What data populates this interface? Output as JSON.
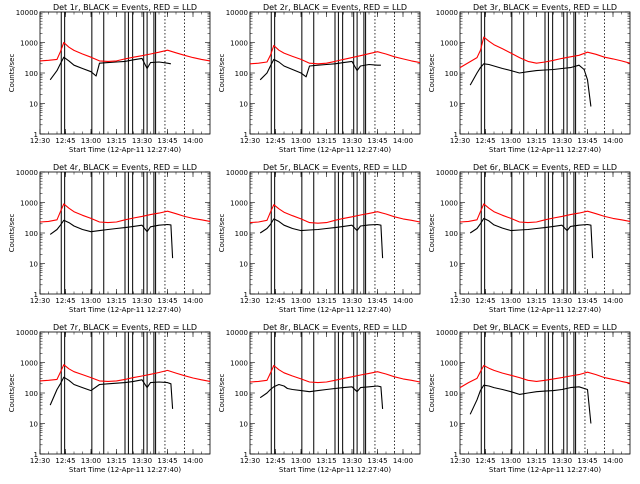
{
  "figure": {
    "xlabel": "Start Time (12-Apr-11 12:27:40)",
    "ylabel": "Counts/sec",
    "xticks": [
      "12:30",
      "12:45",
      "13:00",
      "13:15",
      "13:30",
      "13:45",
      "14:00"
    ],
    "yticks": [
      "1",
      "10",
      "100",
      "1000",
      "10000"
    ]
  },
  "colors": {
    "events": "#000000",
    "lld": "#ff0000"
  },
  "chart_data": [
    {
      "type": "line",
      "title": "Det 1r, BLACK = Events, RED = LLD",
      "yscale": "log",
      "xlim": [
        "12:30",
        "14:10"
      ],
      "ylim": [
        1,
        10000
      ],
      "series": [
        {
          "name": "BLACK = Events",
          "x": [
            "12:36",
            "12:40",
            "12:42",
            "12:44",
            "12:47",
            "12:50",
            "12:55",
            "13:00",
            "13:03",
            "13:05",
            "13:10",
            "13:15",
            "13:20",
            "13:25",
            "13:30",
            "13:33",
            "13:35",
            "13:40",
            "13:45",
            "13:47"
          ],
          "y": [
            60,
            120,
            200,
            330,
            250,
            180,
            140,
            110,
            80,
            210,
            220,
            230,
            240,
            270,
            300,
            140,
            220,
            230,
            210,
            200
          ]
        },
        {
          "name": "RED = LLD",
          "x": [
            "12:30",
            "12:35",
            "12:40",
            "12:42",
            "12:44",
            "12:47",
            "12:50",
            "12:55",
            "13:00",
            "13:05",
            "13:10",
            "13:15",
            "13:20",
            "13:25",
            "13:30",
            "13:35",
            "13:40",
            "13:45",
            "13:50",
            "13:55",
            "14:00",
            "14:05",
            "14:10"
          ],
          "y": [
            250,
            260,
            280,
            500,
            1000,
            700,
            550,
            420,
            330,
            250,
            240,
            250,
            290,
            330,
            370,
            420,
            480,
            560,
            460,
            380,
            320,
            280,
            250
          ]
        }
      ]
    },
    {
      "type": "line",
      "title": "Det 2r, BLACK = Events, RED = LLD",
      "yscale": "log",
      "xlim": [
        "12:30",
        "14:10"
      ],
      "ylim": [
        1,
        10000
      ],
      "series": [
        {
          "name": "BLACK = Events",
          "x": [
            "12:36",
            "12:40",
            "12:42",
            "12:44",
            "12:47",
            "12:50",
            "12:55",
            "13:00",
            "13:03",
            "13:05",
            "13:10",
            "13:15",
            "13:20",
            "13:25",
            "13:30",
            "13:33",
            "13:35",
            "13:40",
            "13:45",
            "13:47"
          ],
          "y": [
            60,
            100,
            170,
            280,
            230,
            170,
            130,
            100,
            75,
            170,
            180,
            190,
            200,
            220,
            240,
            120,
            170,
            190,
            180,
            180
          ]
        },
        {
          "name": "RED = LLD",
          "x": [
            "12:30",
            "12:35",
            "12:40",
            "12:42",
            "12:44",
            "12:47",
            "12:50",
            "12:55",
            "13:00",
            "13:05",
            "13:10",
            "13:15",
            "13:20",
            "13:25",
            "13:30",
            "13:35",
            "13:40",
            "13:45",
            "13:50",
            "13:55",
            "14:00",
            "14:05",
            "14:10"
          ],
          "y": [
            200,
            210,
            230,
            380,
            800,
            560,
            450,
            350,
            280,
            210,
            200,
            210,
            240,
            280,
            320,
            370,
            430,
            500,
            420,
            340,
            290,
            250,
            220
          ]
        }
      ]
    },
    {
      "type": "line",
      "title": "Det 3r, BLACK = Events, RED = LLD",
      "yscale": "log",
      "xlim": [
        "12:30",
        "14:10"
      ],
      "ylim": [
        1,
        10000
      ],
      "series": [
        {
          "name": "BLACK = Events",
          "x": [
            "12:36",
            "12:40",
            "12:42",
            "12:44",
            "12:47",
            "12:50",
            "12:55",
            "13:00",
            "13:05",
            "13:10",
            "13:15",
            "13:20",
            "13:25",
            "13:30",
            "13:35",
            "13:40",
            "13:43",
            "13:45",
            "13:47"
          ],
          "y": [
            40,
            100,
            150,
            200,
            190,
            170,
            140,
            120,
            100,
            110,
            120,
            125,
            130,
            140,
            150,
            180,
            130,
            60,
            8
          ]
        },
        {
          "name": "RED = LLD",
          "x": [
            "12:30",
            "12:35",
            "12:40",
            "12:42",
            "12:44",
            "12:47",
            "12:50",
            "12:55",
            "13:00",
            "13:05",
            "13:10",
            "13:15",
            "13:20",
            "13:25",
            "13:30",
            "13:35",
            "13:40",
            "13:45",
            "13:50",
            "13:55",
            "14:00",
            "14:05",
            "14:10"
          ],
          "y": [
            150,
            220,
            320,
            550,
            1500,
            1100,
            850,
            620,
            450,
            320,
            240,
            210,
            230,
            260,
            300,
            340,
            380,
            480,
            410,
            330,
            290,
            250,
            210
          ]
        }
      ]
    },
    {
      "type": "line",
      "title": "Det 4r, BLACK = Events, RED = LLD",
      "yscale": "log",
      "xlim": [
        "12:30",
        "14:10"
      ],
      "ylim": [
        1,
        10000
      ],
      "series": [
        {
          "name": "BLACK = Events",
          "x": [
            "12:36",
            "12:40",
            "12:42",
            "12:44",
            "12:47",
            "12:50",
            "12:55",
            "13:00",
            "13:05",
            "13:10",
            "13:15",
            "13:20",
            "13:25",
            "13:30",
            "13:33",
            "13:35",
            "13:40",
            "13:45",
            "13:47",
            "13:48"
          ],
          "y": [
            90,
            130,
            180,
            260,
            220,
            170,
            130,
            110,
            120,
            130,
            140,
            150,
            165,
            180,
            110,
            160,
            180,
            190,
            185,
            15
          ]
        },
        {
          "name": "RED = LLD",
          "x": [
            "12:30",
            "12:35",
            "12:40",
            "12:42",
            "12:44",
            "12:47",
            "12:50",
            "12:55",
            "13:00",
            "13:05",
            "13:10",
            "13:15",
            "13:20",
            "13:25",
            "13:30",
            "13:35",
            "13:40",
            "13:45",
            "13:50",
            "13:55",
            "14:00",
            "14:05",
            "14:10"
          ],
          "y": [
            230,
            240,
            270,
            500,
            900,
            650,
            500,
            380,
            300,
            230,
            220,
            230,
            270,
            310,
            350,
            400,
            450,
            520,
            430,
            350,
            300,
            270,
            240
          ]
        }
      ]
    },
    {
      "type": "line",
      "title": "Det 5r, BLACK = Events, RED = LLD",
      "yscale": "log",
      "xlim": [
        "12:30",
        "14:10"
      ],
      "ylim": [
        1,
        10000
      ],
      "series": [
        {
          "name": "BLACK = Events",
          "x": [
            "12:36",
            "12:40",
            "12:42",
            "12:44",
            "12:47",
            "12:50",
            "12:55",
            "13:00",
            "13:05",
            "13:10",
            "13:15",
            "13:20",
            "13:25",
            "13:30",
            "13:33",
            "13:35",
            "13:40",
            "13:45",
            "13:47",
            "13:48"
          ],
          "y": [
            100,
            140,
            190,
            290,
            240,
            180,
            140,
            120,
            125,
            130,
            140,
            150,
            165,
            180,
            120,
            170,
            185,
            190,
            180,
            15
          ]
        },
        {
          "name": "RED = LLD",
          "x": [
            "12:30",
            "12:35",
            "12:40",
            "12:42",
            "12:44",
            "12:47",
            "12:50",
            "12:55",
            "13:00",
            "13:05",
            "13:10",
            "13:15",
            "13:20",
            "13:25",
            "13:30",
            "13:35",
            "13:40",
            "13:45",
            "13:50",
            "13:55",
            "14:00",
            "14:05",
            "14:10"
          ],
          "y": [
            220,
            230,
            260,
            480,
            850,
            620,
            480,
            370,
            290,
            220,
            210,
            220,
            260,
            300,
            340,
            390,
            440,
            500,
            420,
            340,
            290,
            260,
            230
          ]
        }
      ]
    },
    {
      "type": "line",
      "title": "Det 6r, BLACK = Events, RED = LLD",
      "yscale": "log",
      "xlim": [
        "12:30",
        "14:10"
      ],
      "ylim": [
        1,
        10000
      ],
      "series": [
        {
          "name": "BLACK = Events",
          "x": [
            "12:36",
            "12:40",
            "12:42",
            "12:44",
            "12:47",
            "12:50",
            "12:55",
            "13:00",
            "13:05",
            "13:10",
            "13:15",
            "13:20",
            "13:25",
            "13:30",
            "13:33",
            "13:35",
            "13:40",
            "13:45",
            "13:47",
            "13:48"
          ],
          "y": [
            100,
            140,
            200,
            300,
            250,
            185,
            145,
            120,
            125,
            130,
            140,
            150,
            165,
            180,
            120,
            165,
            180,
            190,
            180,
            15
          ]
        },
        {
          "name": "RED = LLD",
          "x": [
            "12:30",
            "12:35",
            "12:40",
            "12:42",
            "12:44",
            "12:47",
            "12:50",
            "12:55",
            "13:00",
            "13:05",
            "13:10",
            "13:15",
            "13:20",
            "13:25",
            "13:30",
            "13:35",
            "13:40",
            "13:45",
            "13:50",
            "13:55",
            "14:00",
            "14:05",
            "14:10"
          ],
          "y": [
            230,
            240,
            270,
            500,
            900,
            650,
            500,
            380,
            300,
            230,
            220,
            230,
            270,
            310,
            350,
            400,
            450,
            520,
            430,
            350,
            300,
            270,
            240
          ]
        }
      ]
    },
    {
      "type": "line",
      "title": "Det 7r, BLACK = Events, RED = LLD",
      "yscale": "log",
      "xlim": [
        "12:30",
        "14:10"
      ],
      "ylim": [
        1,
        10000
      ],
      "series": [
        {
          "name": "BLACK = Events",
          "x": [
            "12:36",
            "12:40",
            "12:42",
            "12:44",
            "12:47",
            "12:50",
            "12:55",
            "13:00",
            "13:05",
            "13:10",
            "13:15",
            "13:20",
            "13:25",
            "13:30",
            "13:33",
            "13:35",
            "13:40",
            "13:45",
            "13:47",
            "13:48"
          ],
          "y": [
            40,
            130,
            200,
            330,
            260,
            190,
            150,
            120,
            190,
            200,
            210,
            220,
            240,
            270,
            150,
            220,
            230,
            220,
            200,
            30
          ]
        },
        {
          "name": "RED = LLD",
          "x": [
            "12:30",
            "12:35",
            "12:40",
            "12:42",
            "12:44",
            "12:47",
            "12:50",
            "12:55",
            "13:00",
            "13:05",
            "13:10",
            "13:15",
            "13:20",
            "13:25",
            "13:30",
            "13:35",
            "13:40",
            "13:45",
            "13:50",
            "13:55",
            "14:00",
            "14:05",
            "14:10"
          ],
          "y": [
            250,
            260,
            280,
            480,
            850,
            620,
            500,
            400,
            320,
            250,
            240,
            250,
            280,
            320,
            360,
            410,
            470,
            550,
            450,
            370,
            310,
            270,
            240
          ]
        }
      ]
    },
    {
      "type": "line",
      "title": "Det 8r, BLACK = Events, RED = LLD",
      "yscale": "log",
      "xlim": [
        "12:30",
        "14:10"
      ],
      "ylim": [
        1,
        10000
      ],
      "series": [
        {
          "name": "BLACK = Events",
          "x": [
            "12:36",
            "12:40",
            "12:42",
            "12:44",
            "12:47",
            "12:50",
            "12:52",
            "12:55",
            "13:00",
            "13:05",
            "13:10",
            "13:15",
            "13:20",
            "13:25",
            "13:30",
            "13:33",
            "13:35",
            "13:40",
            "13:45",
            "13:47",
            "13:48"
          ],
          "y": [
            70,
            100,
            130,
            160,
            190,
            170,
            140,
            130,
            120,
            110,
            120,
            130,
            140,
            150,
            160,
            110,
            150,
            160,
            170,
            160,
            30
          ]
        },
        {
          "name": "RED = LLD",
          "x": [
            "12:30",
            "12:35",
            "12:40",
            "12:42",
            "12:44",
            "12:47",
            "12:50",
            "12:55",
            "13:00",
            "13:05",
            "13:10",
            "13:15",
            "13:20",
            "13:25",
            "13:30",
            "13:35",
            "13:40",
            "13:45",
            "13:50",
            "13:55",
            "14:00",
            "14:05",
            "14:10"
          ],
          "y": [
            230,
            240,
            260,
            450,
            800,
            580,
            460,
            360,
            290,
            230,
            220,
            230,
            260,
            300,
            340,
            390,
            440,
            500,
            420,
            340,
            290,
            260,
            230
          ]
        }
      ]
    },
    {
      "type": "line",
      "title": "Det 9r, BLACK = Events, RED = LLD",
      "yscale": "log",
      "xlim": [
        "12:30",
        "14:10"
      ],
      "ylim": [
        1,
        10000
      ],
      "series": [
        {
          "name": "BLACK = Events",
          "x": [
            "12:36",
            "12:40",
            "12:42",
            "12:44",
            "12:47",
            "12:50",
            "12:55",
            "13:00",
            "13:05",
            "13:10",
            "13:15",
            "13:20",
            "13:25",
            "13:30",
            "13:35",
            "13:40",
            "13:45",
            "13:47"
          ],
          "y": [
            20,
            60,
            120,
            180,
            170,
            150,
            130,
            110,
            90,
            100,
            110,
            115,
            120,
            130,
            150,
            160,
            130,
            10
          ]
        },
        {
          "name": "RED = LLD",
          "x": [
            "12:30",
            "12:35",
            "12:40",
            "12:42",
            "12:44",
            "12:47",
            "12:50",
            "12:55",
            "13:00",
            "13:05",
            "13:10",
            "13:15",
            "13:20",
            "13:25",
            "13:30",
            "13:35",
            "13:40",
            "13:45",
            "13:50",
            "13:55",
            "14:00",
            "14:05",
            "14:10"
          ],
          "y": [
            150,
            220,
            300,
            500,
            800,
            650,
            550,
            450,
            380,
            320,
            260,
            240,
            260,
            290,
            320,
            360,
            400,
            480,
            400,
            320,
            280,
            240,
            210
          ]
        }
      ]
    }
  ]
}
